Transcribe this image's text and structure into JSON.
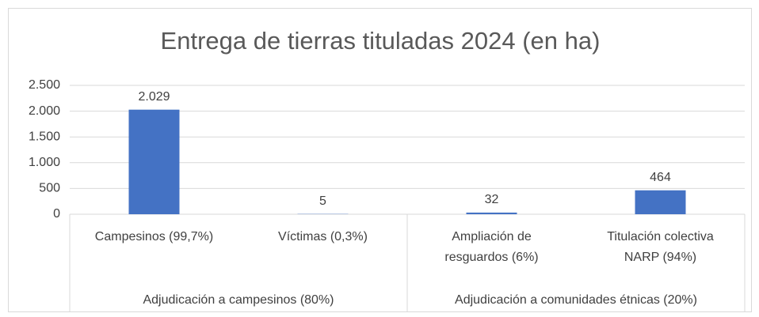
{
  "chart_data": {
    "type": "bar",
    "title": "Entrega de tierras tituladas 2024 (en ha)",
    "color": "#4472c4",
    "grid": true,
    "ylim": [
      0,
      2500
    ],
    "yticks": [
      0,
      500,
      {
        "value": 1000,
        "label": "1.000"
      },
      {
        "value": 1500,
        "label": "1.500"
      },
      {
        "value": 2000,
        "label": "2.000"
      },
      {
        "value": 2500,
        "label": "2.500"
      }
    ],
    "groups": [
      {
        "name": "Adjudicación a campesinos (80%)",
        "categories": [
          "Campesinos (99,7%)",
          "Víctimas (0,3%)"
        ],
        "values": [
          2029,
          5
        ],
        "value_labels": [
          "2.029",
          "5"
        ]
      },
      {
        "name": "Adjudicación a comunidades étnicas (20%)",
        "categories": [
          "Ampliación de resguardos (6%)",
          "Titulación colectiva NARP (94%)"
        ],
        "values": [
          32,
          464
        ],
        "value_labels": [
          "32",
          "464"
        ]
      }
    ]
  }
}
